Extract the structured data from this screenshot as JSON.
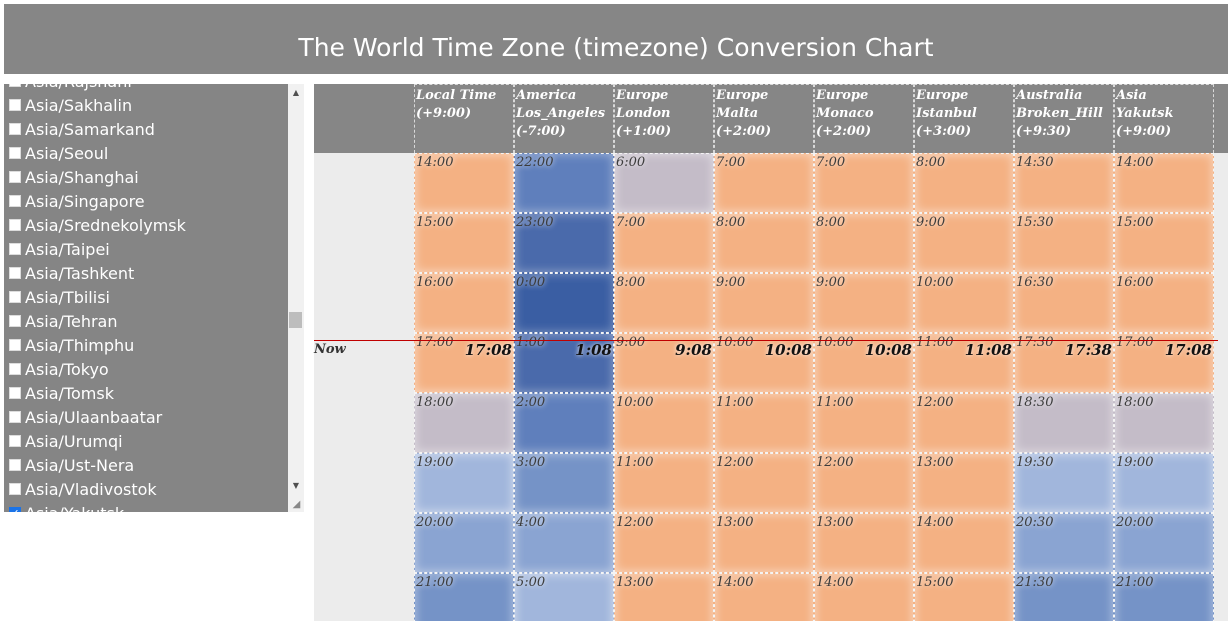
{
  "title": "The World Time Zone (timezone) Conversion Chart",
  "sidebar": {
    "items": [
      {
        "label": "Asia/Rajshahi",
        "checked": false
      },
      {
        "label": "Asia/Sakhalin",
        "checked": false
      },
      {
        "label": "Asia/Samarkand",
        "checked": false
      },
      {
        "label": "Asia/Seoul",
        "checked": false
      },
      {
        "label": "Asia/Shanghai",
        "checked": false
      },
      {
        "label": "Asia/Singapore",
        "checked": false
      },
      {
        "label": "Asia/Srednekolymsk",
        "checked": false
      },
      {
        "label": "Asia/Taipei",
        "checked": false
      },
      {
        "label": "Asia/Tashkent",
        "checked": false
      },
      {
        "label": "Asia/Tbilisi",
        "checked": false
      },
      {
        "label": "Asia/Tehran",
        "checked": false
      },
      {
        "label": "Asia/Thimphu",
        "checked": false
      },
      {
        "label": "Asia/Tokyo",
        "checked": false
      },
      {
        "label": "Asia/Tomsk",
        "checked": false
      },
      {
        "label": "Asia/Ulaanbaatar",
        "checked": false
      },
      {
        "label": "Asia/Urumqi",
        "checked": false
      },
      {
        "label": "Asia/Ust-Nera",
        "checked": false
      },
      {
        "label": "Asia/Vladivostok",
        "checked": false
      },
      {
        "label": "Asia/Yakutsk",
        "checked": true
      }
    ],
    "check_mark": "✓",
    "scroll_up": "▲",
    "scroll_down": "▼",
    "resize_grip": "◢"
  },
  "chart": {
    "now_label": "Now",
    "columns": [
      {
        "line1": "Local Time",
        "line2": "",
        "offset": "(+9:00)",
        "now": "17:08",
        "times": [
          "14:00",
          "15:00",
          "16:00",
          "17:00",
          "18:00",
          "19:00",
          "20:00",
          "21:00"
        ],
        "tones": [
          "orange",
          "orange",
          "orange",
          "orange",
          "gray",
          "b0",
          "b1",
          "b2"
        ]
      },
      {
        "line1": "America",
        "line2": "Los_Angeles",
        "offset": "(-7:00)",
        "now": "1:08",
        "times": [
          "22:00",
          "23:00",
          "0:00",
          "1:00",
          "2:00",
          "3:00",
          "4:00",
          "5:00"
        ],
        "tones": [
          "b3",
          "b4",
          "b5",
          "b4",
          "b3",
          "b2",
          "b1",
          "b0"
        ]
      },
      {
        "line1": "Europe",
        "line2": "London",
        "offset": "(+1:00)",
        "now": "9:08",
        "times": [
          "6:00",
          "7:00",
          "8:00",
          "9:00",
          "10:00",
          "11:00",
          "12:00",
          "13:00"
        ],
        "tones": [
          "gray",
          "orange",
          "orange",
          "orange",
          "orange",
          "orange",
          "orange",
          "orange"
        ]
      },
      {
        "line1": "Europe",
        "line2": "Malta",
        "offset": "(+2:00)",
        "now": "10:08",
        "times": [
          "7:00",
          "8:00",
          "9:00",
          "10:00",
          "11:00",
          "12:00",
          "13:00",
          "14:00"
        ],
        "tones": [
          "orange",
          "orange",
          "orange",
          "orange",
          "orange",
          "orange",
          "orange",
          "orange"
        ]
      },
      {
        "line1": "Europe",
        "line2": "Monaco",
        "offset": "(+2:00)",
        "now": "10:08",
        "times": [
          "7:00",
          "8:00",
          "9:00",
          "10:00",
          "11:00",
          "12:00",
          "13:00",
          "14:00"
        ],
        "tones": [
          "orange",
          "orange",
          "orange",
          "orange",
          "orange",
          "orange",
          "orange",
          "orange"
        ]
      },
      {
        "line1": "Europe",
        "line2": "Istanbul",
        "offset": "(+3:00)",
        "now": "11:08",
        "times": [
          "8:00",
          "9:00",
          "10:00",
          "11:00",
          "12:00",
          "13:00",
          "14:00",
          "15:00"
        ],
        "tones": [
          "orange",
          "orange",
          "orange",
          "orange",
          "orange",
          "orange",
          "orange",
          "orange"
        ]
      },
      {
        "line1": "Australia",
        "line2": "Broken_Hill",
        "offset": "(+9:30)",
        "now": "17:38",
        "times": [
          "14:30",
          "15:30",
          "16:30",
          "17:30",
          "18:30",
          "19:30",
          "20:30",
          "21:30"
        ],
        "tones": [
          "orange",
          "orange",
          "orange",
          "orange",
          "gray",
          "b0",
          "b1",
          "b2"
        ]
      },
      {
        "line1": "Asia",
        "line2": "Yakutsk",
        "offset": "(+9:00)",
        "now": "17:08",
        "times": [
          "14:00",
          "15:00",
          "16:00",
          "17:00",
          "18:00",
          "19:00",
          "20:00",
          "21:00"
        ],
        "tones": [
          "orange",
          "orange",
          "orange",
          "orange",
          "gray",
          "b0",
          "b1",
          "b2"
        ]
      }
    ]
  }
}
